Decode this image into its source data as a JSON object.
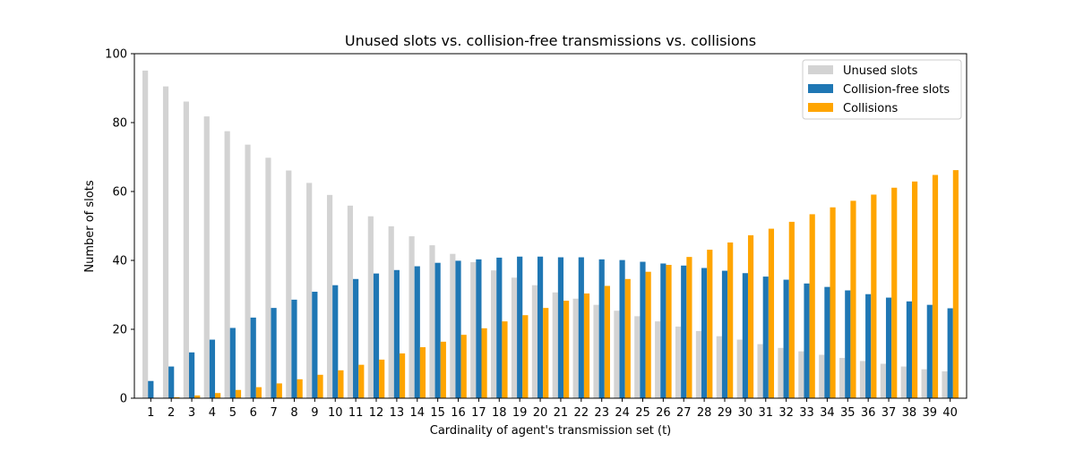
{
  "chart_data": {
    "type": "bar",
    "title": "Unused slots vs. collision-free transmissions vs. collisions",
    "xlabel": "Cardinality of agent's transmission set (t)",
    "ylabel": "Number of slots",
    "ylim": [
      0,
      100
    ],
    "yticks": [
      0,
      20,
      40,
      60,
      80,
      100
    ],
    "grid": false,
    "legend_position": "top-right",
    "categories": [
      "1",
      "2",
      "3",
      "4",
      "5",
      "6",
      "7",
      "8",
      "9",
      "10",
      "11",
      "12",
      "13",
      "14",
      "15",
      "16",
      "17",
      "18",
      "19",
      "20",
      "21",
      "22",
      "23",
      "24",
      "25",
      "26",
      "27",
      "28",
      "29",
      "30",
      "31",
      "32",
      "33",
      "34",
      "35",
      "36",
      "37",
      "38",
      "39",
      "40"
    ],
    "series": [
      {
        "name": "Unused slots",
        "color": "#d3d3d3",
        "values": [
          95.1,
          90.5,
          86.1,
          81.8,
          77.5,
          73.6,
          69.8,
          66.1,
          62.5,
          59.0,
          55.9,
          52.8,
          49.9,
          47.0,
          44.4,
          41.9,
          39.5,
          37.1,
          35.0,
          32.8,
          30.7,
          28.9,
          27.1,
          25.4,
          23.8,
          22.3,
          20.8,
          19.5,
          18.0,
          17.0,
          15.7,
          14.6,
          13.6,
          12.6,
          11.7,
          10.8,
          10.0,
          9.2,
          8.4,
          7.8
        ]
      },
      {
        "name": "Collision-free slots",
        "color": "#1f77b4",
        "values": [
          5.0,
          9.2,
          13.3,
          17.0,
          20.4,
          23.4,
          26.2,
          28.6,
          30.9,
          32.8,
          34.6,
          36.2,
          37.2,
          38.3,
          39.3,
          39.9,
          40.3,
          40.8,
          41.1,
          41.1,
          40.9,
          40.9,
          40.3,
          40.1,
          39.6,
          39.1,
          38.5,
          37.8,
          37.0,
          36.3,
          35.3,
          34.4,
          33.3,
          32.3,
          31.3,
          30.2,
          29.2,
          28.1,
          27.1,
          26.1
        ]
      },
      {
        "name": "Collisions",
        "color": "#ffa500",
        "values": [
          0.0,
          0.3,
          0.8,
          1.5,
          2.4,
          3.2,
          4.3,
          5.5,
          6.8,
          8.1,
          9.7,
          11.2,
          13.0,
          14.8,
          16.4,
          18.4,
          20.3,
          22.3,
          24.1,
          26.2,
          28.3,
          30.4,
          32.6,
          34.6,
          36.7,
          38.7,
          41.0,
          43.1,
          45.2,
          47.3,
          49.2,
          51.2,
          53.4,
          55.4,
          57.3,
          59.1,
          61.1,
          62.9,
          64.8,
          66.2
        ]
      }
    ]
  }
}
